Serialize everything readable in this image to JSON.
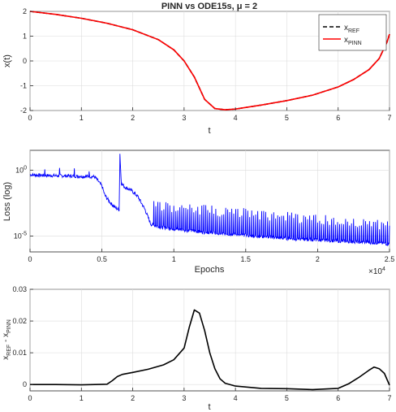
{
  "chart_data": [
    {
      "type": "line",
      "title": "PINN vs ODE15s, μ = 2",
      "xlabel": "t",
      "ylabel": "x(t)",
      "xlim": [
        0,
        7
      ],
      "ylim": [
        -2,
        2
      ],
      "xticks": [
        0,
        1,
        2,
        3,
        4,
        5,
        6,
        7
      ],
      "yticks": [
        -2,
        -1,
        0,
        1,
        2
      ],
      "grid": true,
      "legend_position": "top-right",
      "series": [
        {
          "name": "x_REF",
          "legend_main": "x",
          "legend_sub": "REF",
          "color": "#000000",
          "style": "dashed",
          "x": [
            0,
            0.5,
            1,
            1.5,
            2,
            2.5,
            2.8,
            3.0,
            3.2,
            3.4,
            3.6,
            3.8,
            4.0,
            4.5,
            5.0,
            5.5,
            6.0,
            6.3,
            6.6,
            6.8,
            6.95,
            7.0
          ],
          "y": [
            2.0,
            1.88,
            1.72,
            1.52,
            1.26,
            0.86,
            0.45,
            0.0,
            -0.65,
            -1.55,
            -1.92,
            -1.97,
            -1.94,
            -1.78,
            -1.6,
            -1.38,
            -1.05,
            -0.75,
            -0.35,
            0.1,
            0.75,
            1.08
          ]
        },
        {
          "name": "x_PINN",
          "legend_main": "x",
          "legend_sub": "PINN",
          "color": "#ff0000",
          "style": "solid",
          "x": [
            0,
            0.5,
            1,
            1.5,
            2,
            2.5,
            2.8,
            3.0,
            3.2,
            3.4,
            3.6,
            3.8,
            4.0,
            4.5,
            5.0,
            5.5,
            6.0,
            6.3,
            6.6,
            6.8,
            6.95,
            7.0
          ],
          "y": [
            2.0,
            1.88,
            1.72,
            1.52,
            1.26,
            0.86,
            0.45,
            0.0,
            -0.65,
            -1.55,
            -1.92,
            -1.97,
            -1.94,
            -1.78,
            -1.6,
            -1.38,
            -1.05,
            -0.75,
            -0.35,
            0.1,
            0.75,
            1.08
          ]
        }
      ]
    },
    {
      "type": "line",
      "xlabel": "Epochs",
      "ylabel": "Loss (log)",
      "xlim": [
        0,
        25000
      ],
      "ylim_log10": [
        -6.2,
        1.5
      ],
      "yscale": "log",
      "xticks": [
        0,
        5000,
        10000,
        15000,
        20000,
        25000
      ],
      "xtick_labels": [
        "0",
        "0.5",
        "1",
        "1.5",
        "2",
        "2.5"
      ],
      "x_exponent_base": "×10",
      "x_exponent_power": "4",
      "yticks_log10": [
        0,
        -5
      ],
      "ytick_base": "10",
      "ytick_powers": [
        "0",
        "-5"
      ],
      "grid": true,
      "series": [
        {
          "name": "",
          "color": "#0000ff",
          "x": [
            0,
            1000,
            3000,
            4500,
            5000,
            5200,
            5600,
            6000,
            6200,
            6250,
            6350,
            6600,
            7000,
            7500,
            8000,
            8400,
            9000,
            10000,
            12000,
            15000,
            18000,
            21000,
            24000,
            25000
          ],
          "log10_y": [
            -0.35,
            -0.4,
            -0.45,
            -0.5,
            -1.2,
            -1.9,
            -2.5,
            -2.9,
            -3.0,
            1.3,
            -1.0,
            -1.3,
            -1.5,
            -2.0,
            -3.0,
            -4.1,
            -4.3,
            -4.45,
            -4.7,
            -4.95,
            -5.2,
            -5.35,
            -5.5,
            -5.6
          ],
          "spike_range": [
            8500,
            25000
          ],
          "spike_top_log10": [
            -2.3,
            -3.8
          ]
        }
      ]
    },
    {
      "type": "line",
      "xlabel": "t",
      "ylabel_main": "x",
      "ylabel_sub1": "REF",
      "ylabel_mid": " - x",
      "ylabel_sub2": "PINN",
      "xlim": [
        0,
        7
      ],
      "ylim": [
        -0.002,
        0.03
      ],
      "xticks": [
        0,
        1,
        2,
        3,
        4,
        5,
        6,
        7
      ],
      "yticks": [
        0,
        0.01,
        0.02,
        0.03
      ],
      "grid": true,
      "series": [
        {
          "name": "",
          "color": "#000000",
          "x": [
            0,
            0.5,
            1.0,
            1.5,
            1.6,
            1.7,
            1.8,
            2.0,
            2.3,
            2.6,
            2.8,
            3.0,
            3.1,
            3.2,
            3.3,
            3.4,
            3.5,
            3.6,
            3.7,
            3.8,
            4.0,
            4.5,
            5.0,
            5.5,
            6.0,
            6.2,
            6.4,
            6.6,
            6.7,
            6.8,
            6.9,
            7.0
          ],
          "y": [
            0.0,
            0.0,
            -0.0001,
            0.0001,
            0.0012,
            0.0025,
            0.0032,
            0.0038,
            0.0048,
            0.0062,
            0.0078,
            0.0115,
            0.018,
            0.0235,
            0.0225,
            0.017,
            0.01,
            0.005,
            0.0018,
            0.0004,
            -0.0005,
            -0.0012,
            -0.0013,
            -0.0016,
            -0.0012,
            0.0002,
            0.0022,
            0.0045,
            0.0055,
            0.005,
            0.0035,
            -0.0002
          ]
        }
      ]
    }
  ]
}
